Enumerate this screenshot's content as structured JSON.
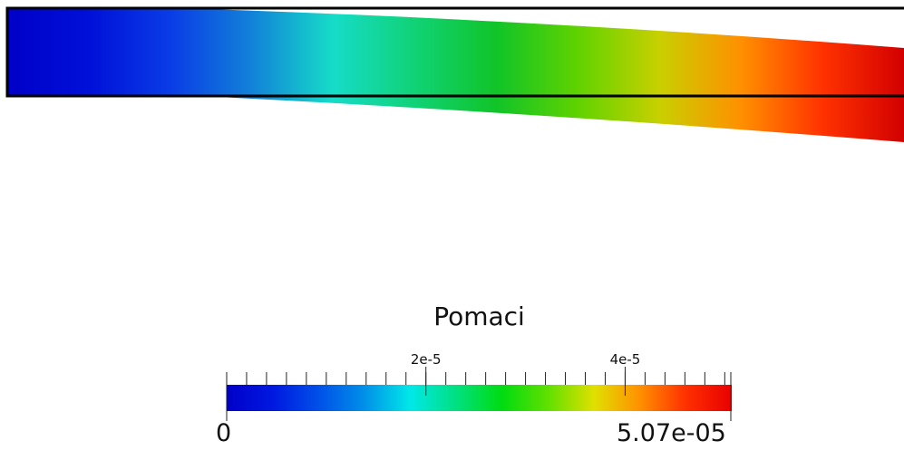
{
  "field": {
    "name": "Pomaci",
    "min_label": "0",
    "max_label": "5.07e-05",
    "range": [
      0,
      5.07e-05
    ],
    "labeled_ticks": [
      {
        "value": 2e-05,
        "label": "2e-5"
      },
      {
        "value": 4e-05,
        "label": "4e-5"
      }
    ],
    "minor_tick_step": 2e-06,
    "colormap": [
      "#0000c8",
      "#0018e0",
      "#0050e8",
      "#0090e8",
      "#00e8e8",
      "#00e080",
      "#00dc10",
      "#60e000",
      "#e0e000",
      "#ff9000",
      "#ff3000",
      "#e80000"
    ]
  },
  "scene": {
    "undeformed_outline_color": "#000000",
    "deformed_beam_colors": [
      "#0000c8",
      "#0010d8",
      "#0a3ce6",
      "#1282d8",
      "#16dcc8",
      "#10d276",
      "#10c428",
      "#60d200",
      "#c8d000",
      "#ff9000",
      "#ff3200",
      "#d20000"
    ]
  }
}
